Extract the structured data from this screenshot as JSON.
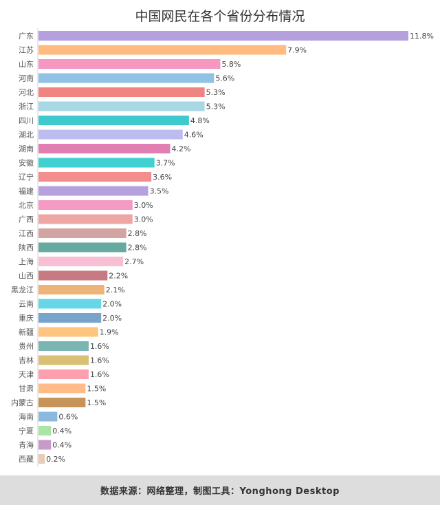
{
  "title": "中国网民在各个省份分布情况",
  "footer": "数据来源：网络整理，制图工具：Yonghong Desktop",
  "chart_data": {
    "type": "bar",
    "orientation": "horizontal",
    "title": "中国网民在各个省份分布情况",
    "xlabel": "",
    "ylabel": "",
    "xlim": [
      0,
      11.8
    ],
    "grid": false,
    "legend": "none",
    "value_unit": "%",
    "categories": [
      "广东",
      "江苏",
      "山东",
      "河南",
      "河北",
      "浙江",
      "四川",
      "湖北",
      "湖南",
      "安徽",
      "辽宁",
      "福建",
      "北京",
      "广西",
      "江西",
      "陕西",
      "上海",
      "山西",
      "黑龙江",
      "云南",
      "重庆",
      "新疆",
      "贵州",
      "吉林",
      "天津",
      "甘肃",
      "内蒙古",
      "海南",
      "宁夏",
      "青海",
      "西藏"
    ],
    "values": [
      11.8,
      7.9,
      5.8,
      5.6,
      5.3,
      5.3,
      4.8,
      4.6,
      4.2,
      3.7,
      3.6,
      3.5,
      3.0,
      3.0,
      2.8,
      2.8,
      2.7,
      2.2,
      2.1,
      2.0,
      2.0,
      1.9,
      1.6,
      1.6,
      1.6,
      1.5,
      1.5,
      0.6,
      0.4,
      0.4,
      0.2
    ],
    "labels": [
      "11.8%",
      "7.9%",
      "5.8%",
      "5.6%",
      "5.3%",
      "5.3%",
      "4.8%",
      "4.6%",
      "4.2%",
      "3.7%",
      "3.6%",
      "3.5%",
      "3.0%",
      "3.0%",
      "2.8%",
      "2.8%",
      "2.7%",
      "2.2%",
      "2.1%",
      "2.0%",
      "2.0%",
      "1.9%",
      "1.6%",
      "1.6%",
      "1.6%",
      "1.5%",
      "1.5%",
      "0.6%",
      "0.4%",
      "0.4%",
      "0.2%"
    ],
    "colors": [
      "#b3a0dc",
      "#ffbb80",
      "#f697c1",
      "#8fc2e4",
      "#ef8480",
      "#a8d8e4",
      "#3ec9cd",
      "#bcbcf0",
      "#e27fb2",
      "#40d0d0",
      "#f48e8e",
      "#b7a0df",
      "#f59ac3",
      "#eea6a4",
      "#d2a5a2",
      "#65a99f",
      "#f8bfd4",
      "#c77a82",
      "#eeb377",
      "#67d7e8",
      "#78a4cb",
      "#ffc47e",
      "#7ab5b1",
      "#d9bf74",
      "#ff9fae",
      "#ffbb88",
      "#c69459",
      "#8bb8dd",
      "#aae5a8",
      "#c79ac9",
      "#e8cbb8"
    ]
  }
}
